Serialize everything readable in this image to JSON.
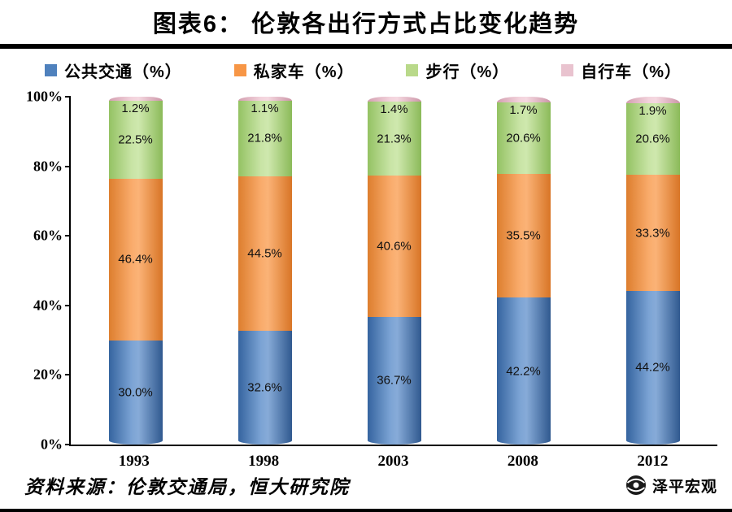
{
  "title": "图表6：  伦敦各出行方式占比变化趋势",
  "source": "资料来源：伦敦交通局，恒大研究院",
  "logo": {
    "text": "泽平宏观",
    "icon": "globe-icon"
  },
  "colors": {
    "public_transport": "#4f81bd",
    "private_car": "#f79646",
    "walking": "#b9d98a",
    "bicycle": "#e9c3cf"
  },
  "chart_data": {
    "type": "bar",
    "stacked": true,
    "title": "图表6：  伦敦各出行方式占比变化趋势",
    "categories": [
      "1993",
      "1998",
      "2003",
      "2008",
      "2012"
    ],
    "series": [
      {
        "name": "公共交通（%）",
        "key": "public_transport",
        "values": [
          30.0,
          32.6,
          36.7,
          42.2,
          44.2
        ]
      },
      {
        "name": "私家车（%）",
        "key": "private_car",
        "values": [
          46.4,
          44.5,
          40.6,
          35.5,
          33.3
        ]
      },
      {
        "name": "步行（%）",
        "key": "walking",
        "values": [
          22.5,
          21.8,
          21.3,
          20.6,
          20.6
        ]
      },
      {
        "name": "自行车（%）",
        "key": "bicycle",
        "values": [
          1.2,
          1.1,
          1.4,
          1.7,
          1.9
        ]
      }
    ],
    "xlabel": "",
    "ylabel": "",
    "ylim": [
      0,
      100
    ],
    "yticks": [
      "0%",
      "20%",
      "40%",
      "60%",
      "80%",
      "100%"
    ],
    "legend_position": "top",
    "grid": false,
    "data_label_format": "one decimal + %"
  }
}
